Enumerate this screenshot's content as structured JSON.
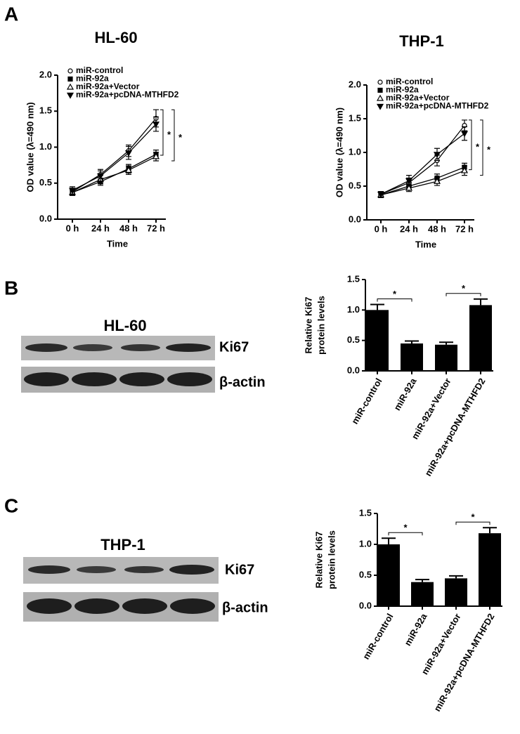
{
  "panels": [
    "A",
    "B",
    "C"
  ],
  "blots": [
    {
      "title": "HL-60",
      "rows": [
        "Ki67",
        "β-actin"
      ]
    },
    {
      "title": "THP-1",
      "rows": [
        "Ki67",
        "β-actin"
      ]
    }
  ],
  "chart_data": [
    {
      "type": "line",
      "title": "HL-60",
      "xlabel": "Time",
      "ylabel": "OD value (λ=490 nm)",
      "categories": [
        "0 h",
        "24 h",
        "48 h",
        "72 h"
      ],
      "ylim": [
        0,
        2
      ],
      "yticks": [
        {
          "value": 0,
          "label": "0.0"
        },
        {
          "value": 0.5,
          "label": "0.5"
        },
        {
          "value": 1,
          "label": "1.0"
        },
        {
          "value": 1.5,
          "label": "1.5"
        },
        {
          "value": 2,
          "label": "2.0"
        }
      ],
      "series": [
        {
          "name": "miR-control",
          "color": "#000000",
          "marker": "open-circle",
          "values": [
            0.38,
            0.62,
            0.95,
            1.4
          ],
          "errors": [
            0.05,
            0.07,
            0.08,
            0.12
          ]
        },
        {
          "name": "miR-92a",
          "color": "#000000",
          "marker": "square",
          "values": [
            0.37,
            0.52,
            0.7,
            0.9
          ],
          "errors": [
            0.04,
            0.05,
            0.06,
            0.06
          ]
        },
        {
          "name": "miR-92a+Vector",
          "color": "#000000",
          "marker": "open-triangle",
          "values": [
            0.37,
            0.55,
            0.68,
            0.87
          ],
          "errors": [
            0.04,
            0.06,
            0.06,
            0.06
          ]
        },
        {
          "name": "miR-92a+pcDNA-MTHFD2",
          "color": "#000000",
          "marker": "down-triangle",
          "values": [
            0.4,
            0.6,
            0.92,
            1.32
          ],
          "errors": [
            0.05,
            0.07,
            0.09,
            0.1
          ]
        }
      ],
      "annotations": [
        "*",
        "*"
      ]
    },
    {
      "type": "line",
      "title": "THP-1",
      "xlabel": "Time",
      "ylabel": "OD value (λ=490 nm)",
      "categories": [
        "0 h",
        "24 h",
        "48 h",
        "72 h"
      ],
      "ylim": [
        0,
        2
      ],
      "yticks": [
        {
          "value": 0,
          "label": "0.0"
        },
        {
          "value": 0.5,
          "label": "0.5"
        },
        {
          "value": 1,
          "label": "1.0"
        },
        {
          "value": 1.5,
          "label": "1.5"
        },
        {
          "value": 2,
          "label": "2.0"
        }
      ],
      "series": [
        {
          "name": "miR-control",
          "color": "#000000",
          "marker": "open-circle",
          "values": [
            0.38,
            0.55,
            0.88,
            1.4
          ],
          "errors": [
            0.04,
            0.07,
            0.08,
            0.08
          ]
        },
        {
          "name": "miR-92a",
          "color": "#000000",
          "marker": "square",
          "values": [
            0.37,
            0.5,
            0.62,
            0.78
          ],
          "errors": [
            0.04,
            0.05,
            0.06,
            0.06
          ]
        },
        {
          "name": "miR-92a+Vector",
          "color": "#000000",
          "marker": "open-triangle",
          "values": [
            0.37,
            0.47,
            0.57,
            0.73
          ],
          "errors": [
            0.04,
            0.05,
            0.06,
            0.07
          ]
        },
        {
          "name": "miR-92a+pcDNA-MTHFD2",
          "color": "#000000",
          "marker": "down-triangle",
          "values": [
            0.38,
            0.58,
            0.97,
            1.28
          ],
          "errors": [
            0.04,
            0.08,
            0.09,
            0.1
          ]
        }
      ],
      "annotations": [
        "*",
        "*"
      ]
    },
    {
      "type": "bar",
      "ylabel": [
        "Relative Ki67",
        "protein levels"
      ],
      "categories": [
        "miR-control",
        "miR-92a",
        "miR-92a+Vector",
        "miR-92a+pcDNA-MTHFD2"
      ],
      "values": [
        1.0,
        0.45,
        0.43,
        1.08
      ],
      "errors": [
        0.09,
        0.04,
        0.04,
        0.1
      ],
      "color": "#000000",
      "ylim": [
        0,
        1.5
      ],
      "yticks": [
        {
          "value": 0,
          "label": "0.0"
        },
        {
          "value": 0.5,
          "label": "0.5"
        },
        {
          "value": 1,
          "label": "1.0"
        },
        {
          "value": 1.5,
          "label": "1.5"
        }
      ],
      "annotations": [
        "*",
        "*"
      ]
    },
    {
      "type": "bar",
      "ylabel": [
        "Relative Ki67",
        "protein levels"
      ],
      "categories": [
        "miR-control",
        "miR-92a",
        "miR-92a+Vector",
        "miR-92a+pcDNA-MTHFD2"
      ],
      "values": [
        1.0,
        0.39,
        0.45,
        1.18
      ],
      "errors": [
        0.1,
        0.04,
        0.04,
        0.09
      ],
      "color": "#000000",
      "ylim": [
        0,
        1.5
      ],
      "yticks": [
        {
          "value": 0,
          "label": "0.0"
        },
        {
          "value": 0.5,
          "label": "0.5"
        },
        {
          "value": 1,
          "label": "1.0"
        },
        {
          "value": 1.5,
          "label": "1.5"
        }
      ],
      "annotations": [
        "*",
        "*"
      ]
    }
  ]
}
